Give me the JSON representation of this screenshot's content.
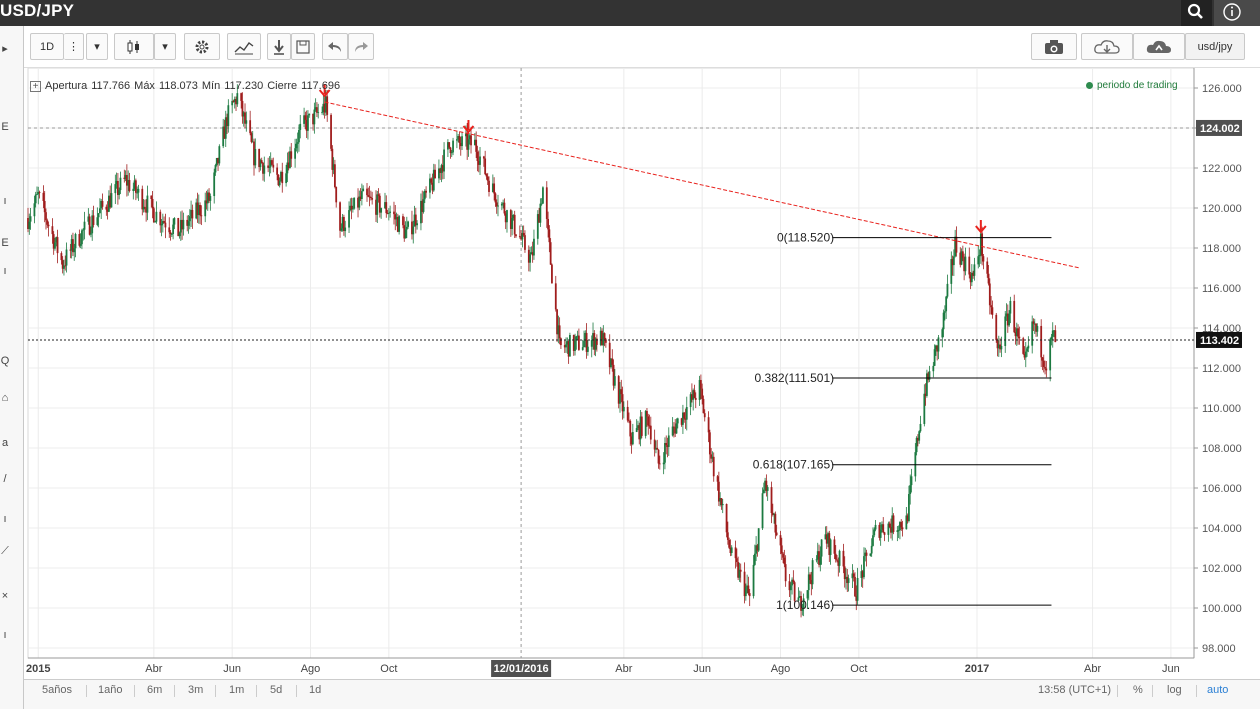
{
  "window": {
    "title": "USD/JPY"
  },
  "toolbar": {
    "interval": "1D",
    "symbol": "usd/jpy"
  },
  "ohlc": {
    "open_label": "Apertura",
    "open": "117.766",
    "high_label": "Máx",
    "high": "118.073",
    "low_label": "Mín",
    "low": "117.230",
    "close_label": "Cierre",
    "close": "117.696"
  },
  "legend": {
    "label": "periodo de trading"
  },
  "bottom": {
    "ranges": [
      "5años",
      "1año",
      "6m",
      "3m",
      "1m",
      "5d",
      "1d"
    ],
    "time": "13:58 (UTC+1)",
    "percent": "%",
    "log": "log",
    "auto": "auto"
  },
  "colors": {
    "up": "#1c7a41",
    "down": "#a01d1d",
    "trendline": "#e8221d",
    "arrow": "#e8221d",
    "auto": "#2a7fd4"
  },
  "chart_data": {
    "type": "candlestick",
    "symbol": "USD/JPY",
    "ylim": [
      97.5,
      127
    ],
    "y_ticks": [
      "126.000",
      "124.000",
      "122.000",
      "120.000",
      "118.000",
      "116.000",
      "114.000",
      "112.000",
      "110.000",
      "108.000",
      "106.000",
      "104.000",
      "102.000",
      "100.000",
      "98.000"
    ],
    "x_ticks": [
      {
        "label": "2015",
        "date": "2015-01-01",
        "bold": true
      },
      {
        "label": "Abr",
        "date": "2015-04-01"
      },
      {
        "label": "Jun",
        "date": "2015-06-01"
      },
      {
        "label": "Ago",
        "date": "2015-08-01"
      },
      {
        "label": "Oct",
        "date": "2015-10-01"
      },
      {
        "label": "Abr",
        "date": "2016-04-01"
      },
      {
        "label": "Jun",
        "date": "2016-06-01"
      },
      {
        "label": "Ago",
        "date": "2016-08-01"
      },
      {
        "label": "Oct",
        "date": "2016-10-01"
      },
      {
        "label": "2017",
        "date": "2017-01-01",
        "bold": true
      },
      {
        "label": "Abr",
        "date": "2017-04-01"
      },
      {
        "label": "Jun",
        "date": "2017-06-01"
      }
    ],
    "crosshair": {
      "date_label": "12/01/2016",
      "date": "2016-01-12",
      "price_label": "124.002",
      "price": 124.002
    },
    "last_price": {
      "label": "113.402",
      "value": 113.402
    },
    "price_path": [
      [
        "2014-12-24",
        119.5
      ],
      [
        "2015-01-01",
        120.6
      ],
      [
        "2015-01-20",
        117.2
      ],
      [
        "2015-02-01",
        118.5
      ],
      [
        "2015-03-10",
        121.4
      ],
      [
        "2015-04-01",
        119.8
      ],
      [
        "2015-04-20",
        118.8
      ],
      [
        "2015-05-15",
        120.5
      ],
      [
        "2015-05-28",
        124.5
      ],
      [
        "2015-06-05",
        125.6
      ],
      [
        "2015-06-18",
        122.6
      ],
      [
        "2015-07-08",
        121.5
      ],
      [
        "2015-07-25",
        124.0
      ],
      [
        "2015-08-13",
        125.1
      ],
      [
        "2015-08-24",
        119.0
      ],
      [
        "2015-09-10",
        120.5
      ],
      [
        "2015-10-01",
        119.9
      ],
      [
        "2015-10-15",
        118.7
      ],
      [
        "2015-11-01",
        120.8
      ],
      [
        "2015-11-18",
        123.2
      ],
      [
        "2015-12-07",
        123.2
      ],
      [
        "2015-12-20",
        121.0
      ],
      [
        "2016-01-05",
        119.3
      ],
      [
        "2016-01-20",
        117.4
      ],
      [
        "2016-01-29",
        121.0
      ],
      [
        "2016-02-11",
        113.0
      ],
      [
        "2016-03-15",
        113.5
      ],
      [
        "2016-04-07",
        108.5
      ],
      [
        "2016-04-20",
        109.5
      ],
      [
        "2016-04-28",
        107.2
      ],
      [
        "2016-05-10",
        109.0
      ],
      [
        "2016-05-30",
        111.0
      ],
      [
        "2016-06-10",
        107.0
      ],
      [
        "2016-06-24",
        102.5
      ],
      [
        "2016-07-08",
        100.5
      ],
      [
        "2016-07-20",
        106.3
      ],
      [
        "2016-08-05",
        101.5
      ],
      [
        "2016-08-16",
        100.2
      ],
      [
        "2016-09-05",
        103.5
      ],
      [
        "2016-09-21",
        101.8
      ],
      [
        "2016-09-29",
        100.9
      ],
      [
        "2016-10-15",
        104.0
      ],
      [
        "2016-11-07",
        104.3
      ],
      [
        "2016-11-20",
        110.5
      ],
      [
        "2016-12-05",
        114.0
      ],
      [
        "2016-12-15",
        118.2
      ],
      [
        "2016-12-29",
        116.5
      ],
      [
        "2017-01-04",
        118.3
      ],
      [
        "2017-01-17",
        112.8
      ],
      [
        "2017-01-27",
        115.0
      ],
      [
        "2017-02-07",
        112.0
      ],
      [
        "2017-02-14",
        114.2
      ],
      [
        "2017-02-24",
        112.2
      ],
      [
        "2017-03-01",
        113.6
      ],
      [
        "2017-03-03",
        113.4
      ]
    ],
    "trendline": {
      "from": {
        "date": "2015-08-12",
        "price": 125.3
      },
      "to": {
        "date": "2017-03-22",
        "price": 117.0
      }
    },
    "arrows": [
      {
        "date": "2015-08-12",
        "price": 125.4
      },
      {
        "date": "2015-12-02",
        "price": 123.6
      },
      {
        "date": "2017-01-04",
        "price": 118.6
      }
    ],
    "fibonacci": [
      {
        "label": "0(118.520)",
        "value": 118.52
      },
      {
        "label": "0.382(111.501)",
        "value": 111.501
      },
      {
        "label": "0.618(107.165)",
        "value": 107.165
      },
      {
        "label": "1(100.146)",
        "value": 100.146
      }
    ],
    "fib_from_date": "2016-09-18",
    "fib_to_date": "2017-02-28"
  }
}
